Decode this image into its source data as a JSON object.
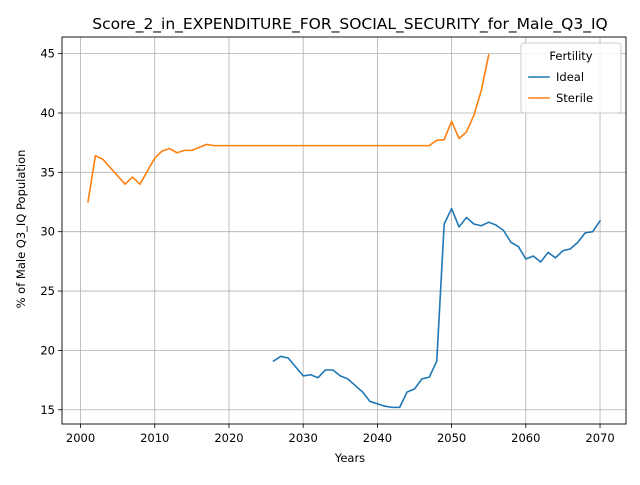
{
  "chart_data": {
    "type": "line",
    "title": "Score_2_in_EXPENDITURE_FOR_SOCIAL_SECURITY_for_Male_Q3_IQ",
    "xlabel": "Years",
    "ylabel": "% of Male Q3_IQ Population",
    "xlim": [
      1997.5,
      2073.5
    ],
    "ylim": [
      13.8,
      46.4
    ],
    "xticks": [
      2000,
      2010,
      2020,
      2030,
      2040,
      2050,
      2060,
      2070
    ],
    "yticks": [
      15,
      20,
      25,
      30,
      35,
      40,
      45
    ],
    "xtick_labels": [
      "2000",
      "2010",
      "2020",
      "2030",
      "2040",
      "2050",
      "2060",
      "2070"
    ],
    "ytick_labels": [
      "15",
      "20",
      "25",
      "30",
      "35",
      "40",
      "45"
    ],
    "grid": true,
    "legend": {
      "title": "Fertility",
      "position": "top-right",
      "entries": [
        "Ideal",
        "Sterile"
      ]
    },
    "series": [
      {
        "name": "Ideal",
        "color": "#1f77b4",
        "x": [
          2026,
          2027,
          2028,
          2029,
          2030,
          2031,
          2032,
          2033,
          2034,
          2035,
          2036,
          2037,
          2038,
          2039,
          2040,
          2041,
          2042,
          2043,
          2044,
          2045,
          2046,
          2047,
          2048,
          2049,
          2050,
          2051,
          2052,
          2053,
          2054,
          2055,
          2056,
          2057,
          2058,
          2059,
          2060,
          2061,
          2062,
          2063,
          2064,
          2065,
          2066,
          2067,
          2068,
          2069,
          2070
        ],
        "values": [
          19.1,
          19.5,
          19.35,
          18.6,
          17.85,
          17.95,
          17.7,
          18.35,
          18.35,
          17.85,
          17.6,
          17.05,
          16.5,
          15.7,
          15.5,
          15.3,
          15.2,
          15.2,
          16.5,
          16.75,
          17.6,
          17.75,
          19.1,
          30.65,
          31.95,
          30.4,
          31.2,
          30.65,
          30.5,
          30.8,
          30.55,
          30.1,
          29.1,
          28.75,
          27.7,
          27.95,
          27.45,
          28.25,
          27.8,
          28.4,
          28.55,
          29.1,
          29.9,
          30.0,
          30.9
        ]
      },
      {
        "name": "Sterile",
        "color": "#ff7f0e",
        "x": [
          2001,
          2002,
          2003,
          2004,
          2005,
          2006,
          2007,
          2008,
          2009,
          2010,
          2011,
          2012,
          2013,
          2014,
          2015,
          2016,
          2017,
          2018,
          2019,
          2020,
          2021,
          2022,
          2023,
          2024,
          2025,
          2026,
          2027,
          2028,
          2029,
          2030,
          2031,
          2032,
          2033,
          2034,
          2035,
          2036,
          2037,
          2038,
          2039,
          2040,
          2041,
          2042,
          2043,
          2044,
          2045,
          2046,
          2047,
          2048,
          2049,
          2050,
          2051,
          2052,
          2053,
          2054,
          2055
        ],
        "values": [
          32.5,
          36.4,
          36.1,
          35.4,
          34.7,
          34.0,
          34.6,
          34.0,
          35.1,
          36.2,
          36.8,
          37.0,
          36.65,
          36.85,
          36.85,
          37.1,
          37.35,
          37.25,
          37.25,
          37.25,
          37.25,
          37.25,
          37.25,
          37.25,
          37.25,
          37.25,
          37.25,
          37.25,
          37.25,
          37.25,
          37.25,
          37.25,
          37.25,
          37.25,
          37.25,
          37.25,
          37.25,
          37.25,
          37.25,
          37.25,
          37.25,
          37.25,
          37.25,
          37.25,
          37.25,
          37.25,
          37.25,
          37.7,
          37.75,
          39.3,
          37.85,
          38.4,
          39.8,
          41.9,
          44.9
        ]
      }
    ]
  }
}
